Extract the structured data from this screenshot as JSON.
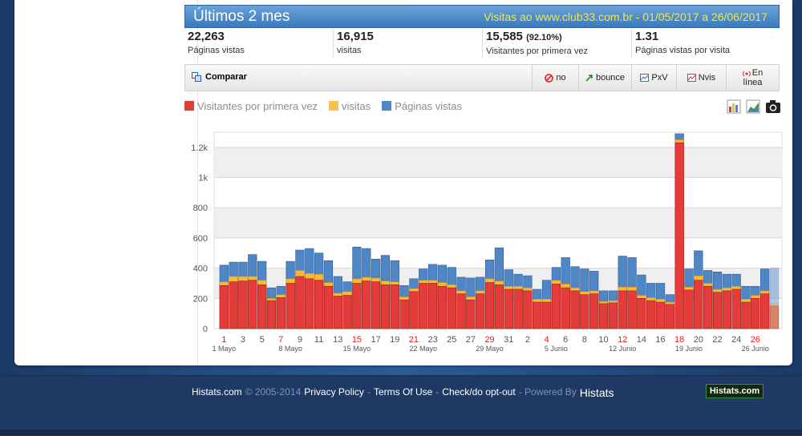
{
  "header": {
    "title": "Últimos 2 mes",
    "subtitle": "Visitas ao www.club33.com.br - 01/05/2017 a 26/06/2017"
  },
  "stats": [
    {
      "value": "22,263",
      "extra": "",
      "label": "Páginas vistas"
    },
    {
      "value": "16,915",
      "extra": "",
      "label": "visitas"
    },
    {
      "value": "15,585",
      "extra": "(92.10%)",
      "label": "Visitantes por primera vez"
    },
    {
      "value": "1.31",
      "extra": "",
      "label": "Páginas vistas por visita"
    }
  ],
  "toolbar": {
    "compare": "Comparar",
    "no": "no",
    "bounce": "bounce",
    "pxv": "PxV",
    "nvis": "Nvis",
    "online_1": "En",
    "online_2": "línea"
  },
  "colors": {
    "first": "#e43b3b",
    "visits": "#f6b93a",
    "pages": "#4f86c6"
  },
  "chart_data": {
    "type": "bar",
    "legend": [
      "Visitantes por primera vez",
      "visitas",
      "Páginas vistas"
    ],
    "ylim": [
      0,
      1300
    ],
    "yticks": [
      {
        "v": 0,
        "l": "0"
      },
      {
        "v": 200,
        "l": "200"
      },
      {
        "v": 400,
        "l": "400"
      },
      {
        "v": 600,
        "l": "600"
      },
      {
        "v": 800,
        "l": "800"
      },
      {
        "v": 1000,
        "l": "1k"
      },
      {
        "v": 1200,
        "l": "1.2k"
      }
    ],
    "day_labels": [
      "1",
      "3",
      "5",
      "7",
      "9",
      "11",
      "13",
      "15",
      "17",
      "19",
      "21",
      "23",
      "25",
      "27",
      "29",
      "31",
      "2",
      "4",
      "6",
      "8",
      "10",
      "12",
      "14",
      "16",
      "18",
      "20",
      "22",
      "24",
      "26"
    ],
    "sunday_labels": [
      "7",
      "15",
      "21",
      "29",
      "4",
      "12",
      "18",
      "26"
    ],
    "week_labels": [
      "1 Mayo",
      "8 Mayo",
      "15 Mayo",
      "22 Mayo",
      "29 Mayo",
      "5 Junio",
      "12 Junio",
      "19 Junio",
      "26 Junio"
    ],
    "first_visitors": [
      285,
      310,
      315,
      320,
      290,
      185,
      205,
      300,
      345,
      330,
      320,
      280,
      215,
      220,
      300,
      315,
      310,
      290,
      290,
      190,
      245,
      300,
      300,
      280,
      270,
      230,
      190,
      230,
      305,
      290,
      260,
      260,
      250,
      175,
      175,
      295,
      270,
      250,
      225,
      230,
      165,
      170,
      250,
      250,
      200,
      185,
      175,
      160,
      1230,
      255,
      320,
      280,
      240,
      250,
      260,
      175,
      200,
      230,
      150
    ],
    "visits": [
      310,
      345,
      345,
      345,
      320,
      200,
      225,
      330,
      385,
      365,
      360,
      305,
      235,
      245,
      330,
      340,
      335,
      315,
      310,
      210,
      265,
      320,
      320,
      305,
      290,
      250,
      210,
      250,
      330,
      315,
      280,
      280,
      270,
      195,
      195,
      320,
      295,
      270,
      245,
      250,
      180,
      185,
      275,
      275,
      220,
      205,
      195,
      175,
      1250,
      275,
      350,
      300,
      260,
      270,
      280,
      195,
      220,
      250,
      165
    ],
    "pageviews": [
      420,
      440,
      440,
      490,
      445,
      270,
      280,
      445,
      520,
      530,
      500,
      450,
      345,
      310,
      540,
      530,
      460,
      485,
      450,
      285,
      330,
      395,
      425,
      420,
      405,
      340,
      335,
      340,
      455,
      535,
      390,
      360,
      350,
      260,
      320,
      405,
      470,
      410,
      395,
      380,
      250,
      250,
      480,
      470,
      355,
      300,
      300,
      225,
      1290,
      395,
      515,
      385,
      375,
      360,
      360,
      280,
      280,
      395,
      400
    ]
  },
  "footer": {
    "brand": "Histats.com",
    "copyright": "© 2005-2014",
    "privacy": "Privacy Policy",
    "terms": "Terms Of Use",
    "optout": "Check/do opt-out",
    "powered": "- Powered By",
    "powered_brand": "Histats",
    "logo": "Histats.com"
  }
}
